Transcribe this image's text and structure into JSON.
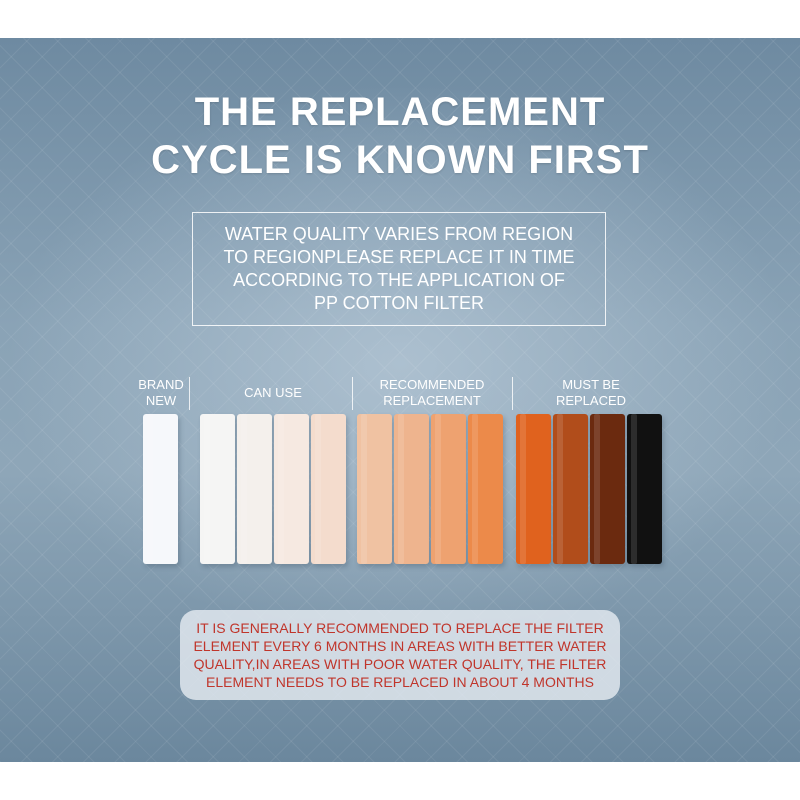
{
  "headline": {
    "line1": "THE REPLACEMENT",
    "line2": "CYCLE IS KNOWN FIRST"
  },
  "notice": {
    "lines": [
      "WATER QUALITY VARIES FROM REGION",
      "TO REGIONPLEASE REPLACE IT IN TIME",
      "ACCORDING TO THE APPLICATION OF",
      "PP COTTON FILTER"
    ]
  },
  "categories": [
    {
      "lines": [
        "BRAND",
        "NEW"
      ]
    },
    {
      "lines": [
        "CAN USE"
      ]
    },
    {
      "lines": [
        "RECOMMENDED",
        "REPLACEMENT"
      ]
    },
    {
      "lines": [
        "MUST BE",
        "REPLACED"
      ]
    }
  ],
  "filters": [
    {
      "stage": "brand-new",
      "color": "#f6f8fb"
    },
    {
      "stage": "can-use",
      "color": "#f5f5f4"
    },
    {
      "stage": "can-use",
      "color": "#f4f0ec"
    },
    {
      "stage": "can-use",
      "color": "#f6e9e1"
    },
    {
      "stage": "can-use",
      "color": "#f4dccd"
    },
    {
      "stage": "recommended-replacement",
      "color": "#f0c2a2"
    },
    {
      "stage": "recommended-replacement",
      "color": "#eeb48e"
    },
    {
      "stage": "recommended-replacement",
      "color": "#eea270"
    },
    {
      "stage": "recommended-replacement",
      "color": "#ec8a4a"
    },
    {
      "stage": "must-be-replaced",
      "color": "#e0621e"
    },
    {
      "stage": "must-be-replaced",
      "color": "#b14d1b"
    },
    {
      "stage": "must-be-replaced",
      "color": "#6b2a0f"
    },
    {
      "stage": "must-be-replaced",
      "color": "#111111"
    }
  ],
  "advice": {
    "lines": [
      "IT IS GENERALLY RECOMMENDED TO REPLACE THE FILTER",
      "ELEMENT EVERY 6 MONTHS IN AREAS WITH BETTER WATER",
      "QUALITY,IN AREAS WITH POOR WATER QUALITY, THE FILTER",
      "ELEMENT NEEDS TO BE REPLACED IN ABOUT 4 MONTHS"
    ]
  },
  "colors": {
    "background": "#8aa3b6",
    "headline": "#ffffff",
    "advice_text": "#c0352b"
  }
}
